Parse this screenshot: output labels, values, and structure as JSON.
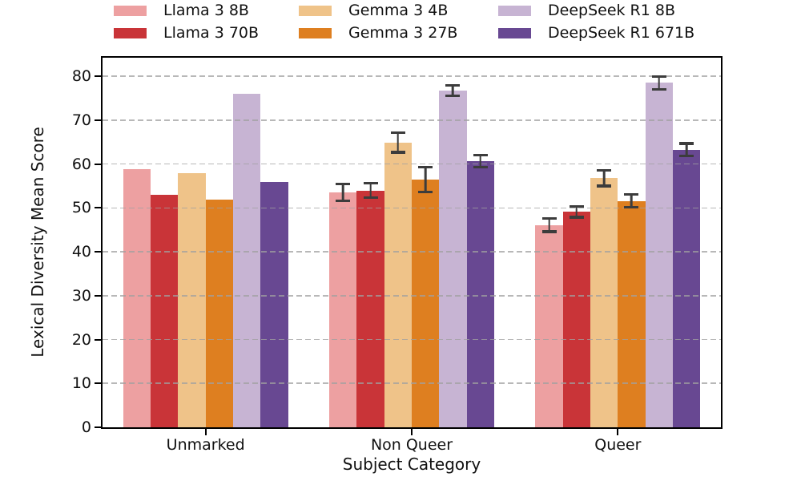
{
  "figure": {
    "background": "#ffffff"
  },
  "chart_data": {
    "type": "bar",
    "title": "",
    "xlabel": "Subject Category",
    "ylabel": "Lexical Diversity Mean Score",
    "categories": [
      "Unmarked",
      "Non Queer",
      "Queer"
    ],
    "series": [
      {
        "name": "Llama 3 8B",
        "color": "#EDA0A1",
        "values": [
          58.8,
          53.6,
          46.1
        ],
        "errors": [
          0,
          2.2,
          1.8
        ]
      },
      {
        "name": "Llama 3 70B",
        "color": "#C93438",
        "values": [
          53.0,
          54.0,
          49.1
        ],
        "errors": [
          0,
          1.9,
          1.5
        ]
      },
      {
        "name": "Gemma 3 4B",
        "color": "#EFC389",
        "values": [
          57.9,
          64.9,
          56.8
        ],
        "errors": [
          0,
          2.5,
          2.1
        ]
      },
      {
        "name": "Gemma 3 27B",
        "color": "#DE7F20",
        "values": [
          51.9,
          56.5,
          51.6
        ],
        "errors": [
          0,
          3.1,
          1.8
        ]
      },
      {
        "name": "DeepSeek R1 8B",
        "color": "#C7B4D3",
        "values": [
          76.0,
          76.8,
          78.5
        ],
        "errors": [
          0,
          1.5,
          1.8
        ]
      },
      {
        "name": "DeepSeek R1 671B",
        "color": "#684892",
        "values": [
          55.9,
          60.7,
          63.3
        ],
        "errors": [
          0,
          1.7,
          1.7
        ]
      }
    ],
    "ylim": [
      0,
      84.25
    ],
    "yticks": [
      0,
      10,
      20,
      30,
      40,
      50,
      60,
      70,
      80
    ],
    "grid": "horizontal-dashed",
    "grid_color": "#b0b0b0",
    "error_bar_color": "#3C3C3C",
    "legend_position": "top",
    "legend_columns": 3
  }
}
